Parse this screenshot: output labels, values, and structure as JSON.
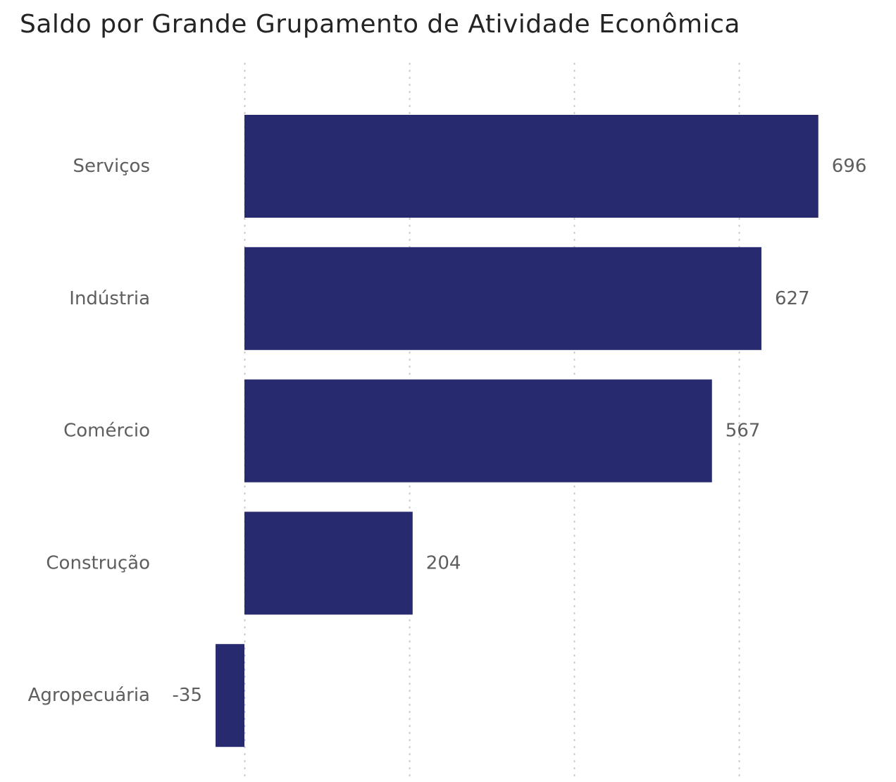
{
  "chart_data": {
    "type": "bar",
    "orientation": "horizontal",
    "title": "Saldo por Grande Grupamento de Atividade Econômica",
    "categories": [
      "Serviços",
      "Indústria",
      "Comércio",
      "Construção",
      "Agropecuária"
    ],
    "values": [
      696,
      627,
      567,
      204,
      -35
    ],
    "data_labels": [
      "696",
      "627",
      "567",
      "204",
      "-35"
    ],
    "xlim": [
      -35,
      696
    ],
    "gridlines": [
      0,
      200,
      400,
      600
    ],
    "grid": true,
    "legend": "none",
    "bar_color": "#282a6f"
  }
}
